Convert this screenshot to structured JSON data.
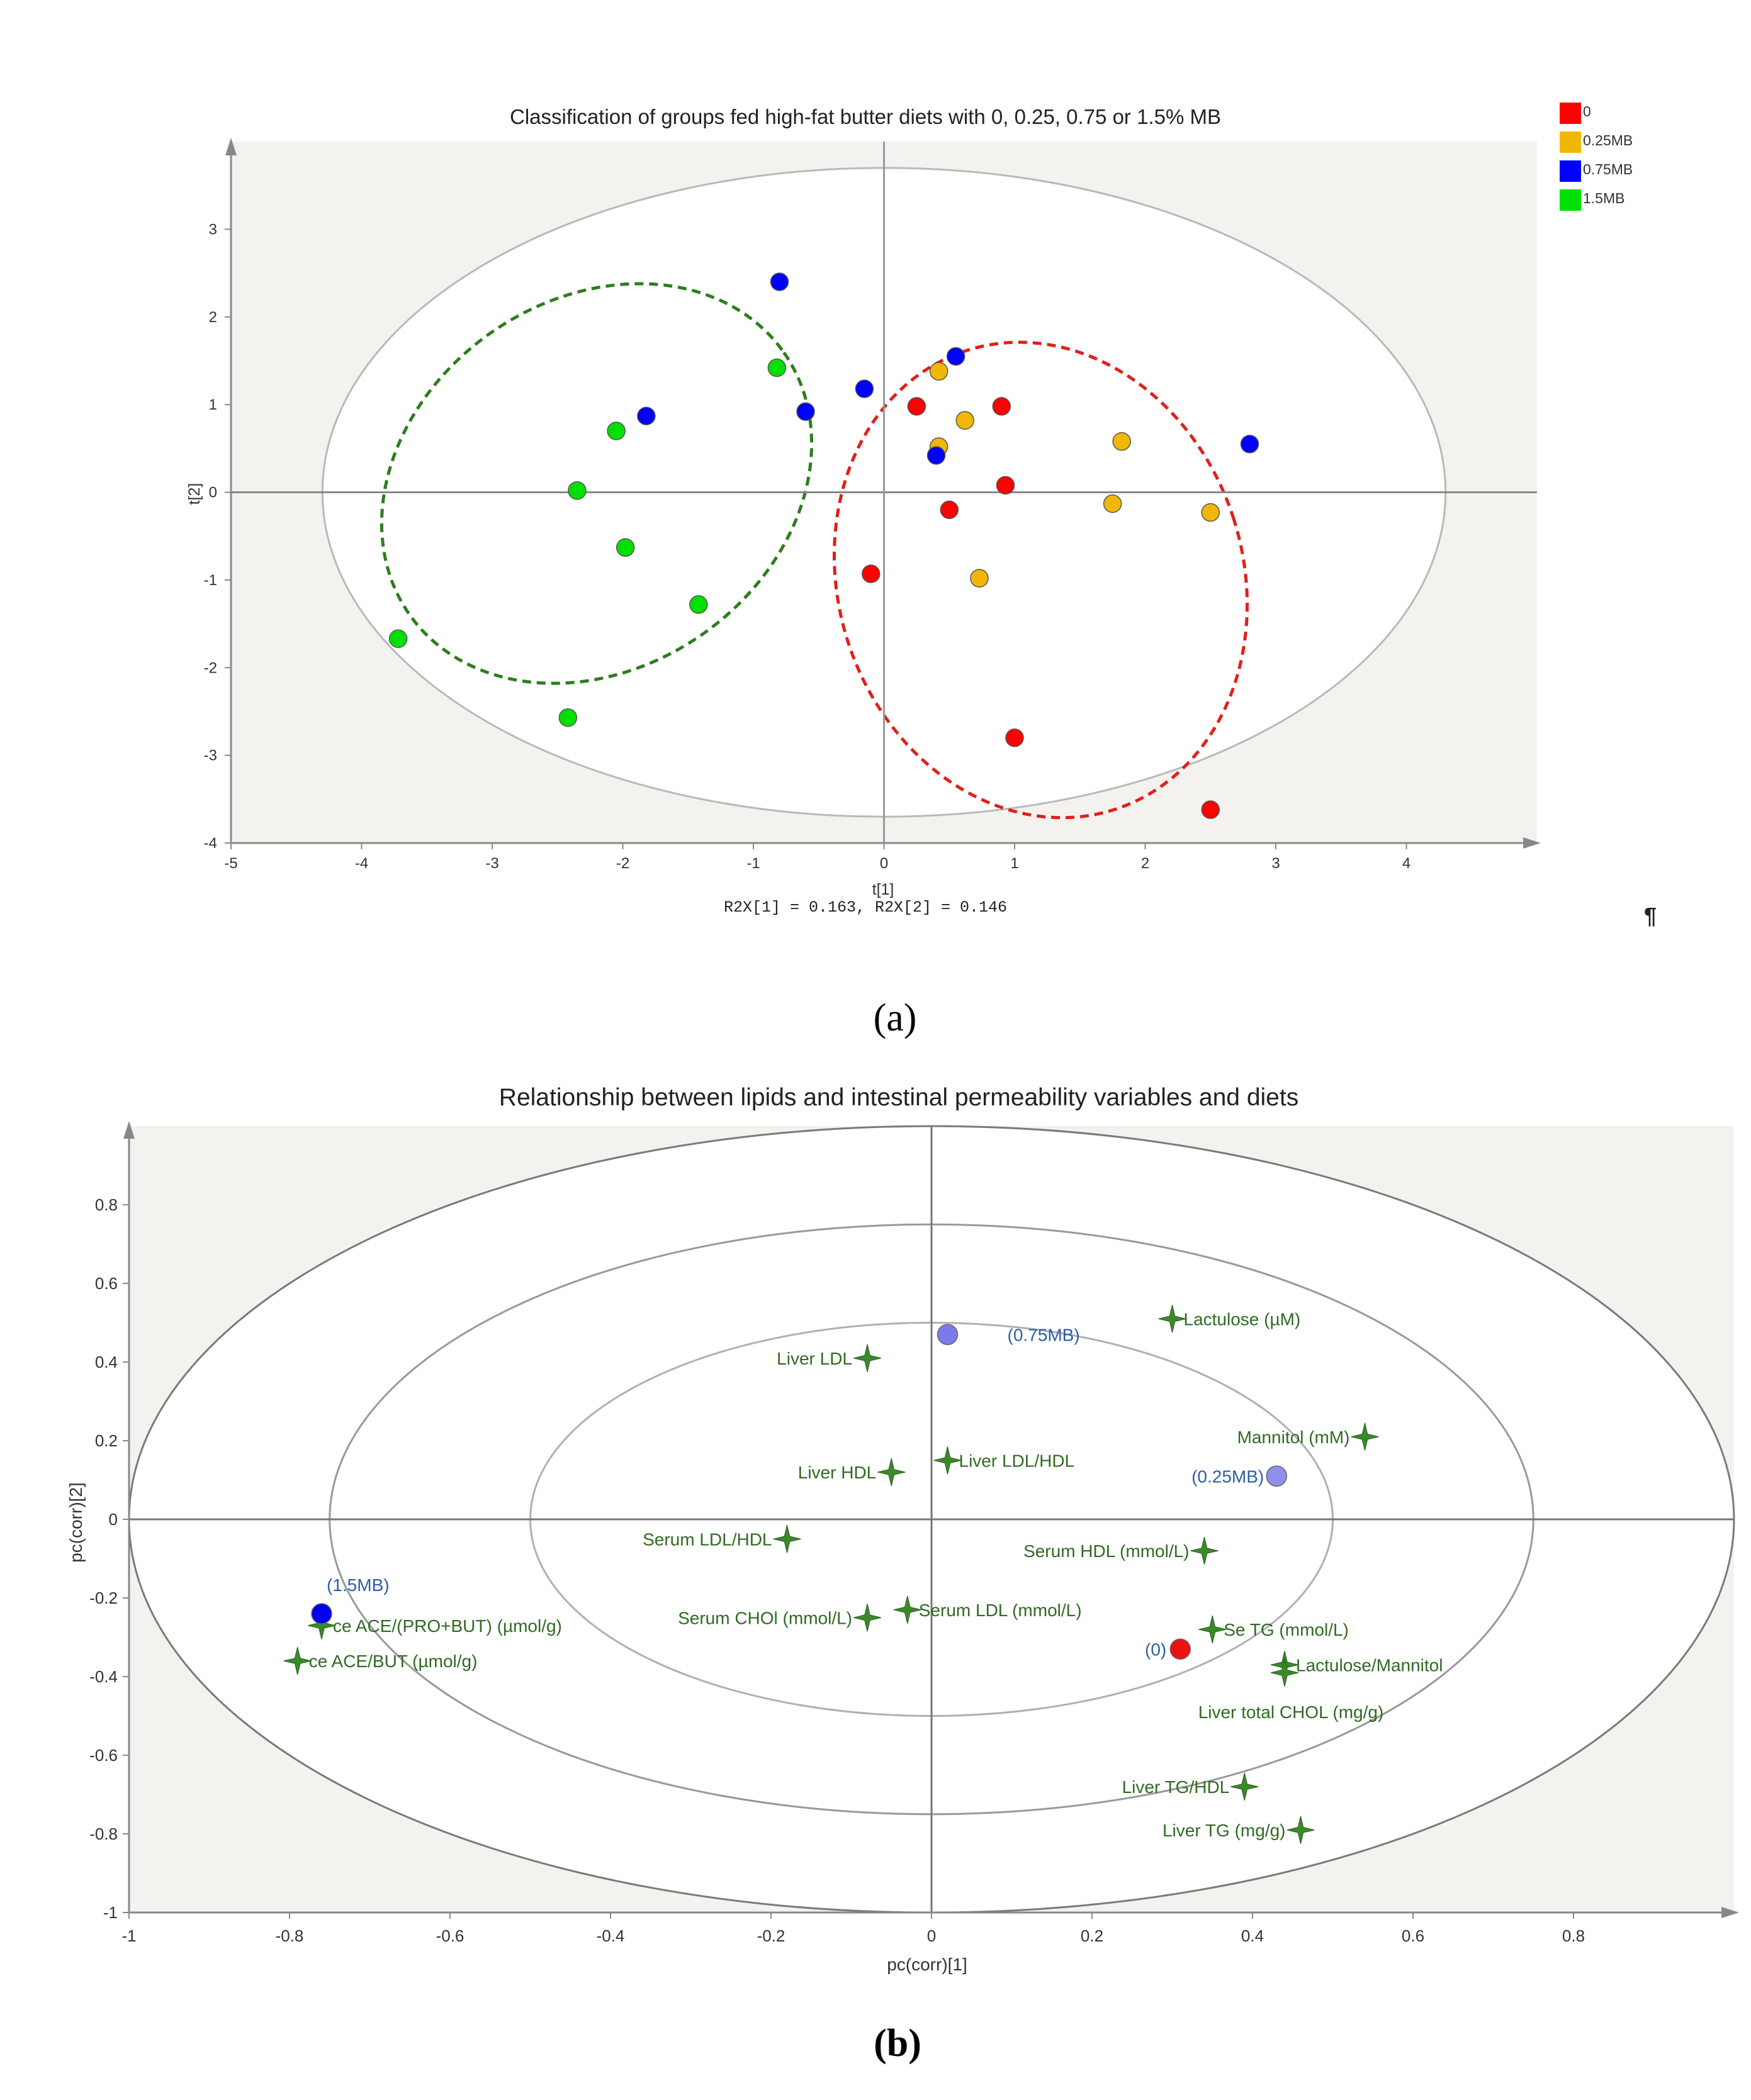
{
  "chart_data": [
    {
      "type": "scatter",
      "title": "Classification of groups fed high-fat butter diets with 0, 0.25, 0.75 or 1.5% MB",
      "xlabel": "t[1]",
      "ylabel": "t[2]",
      "footer": "R2X[1] = 0.163, R2X[2] = 0.146",
      "mark": "¶",
      "panel_label": "(a)",
      "xlim": [
        -5,
        5
      ],
      "ylim": [
        -4,
        4
      ],
      "xticks": [
        -5,
        -4,
        -3,
        -2,
        -1,
        0,
        1,
        2,
        3,
        4
      ],
      "yticks": [
        -4,
        -3,
        -2,
        -1,
        0,
        1,
        2,
        3
      ],
      "hotelling_ellipse": {
        "cx": 0,
        "cy": 0,
        "rx": 4.3,
        "ry": 3.7
      },
      "group_ellipses": [
        {
          "name": "1.5MB group",
          "color": "#2e7d1f",
          "cx": -2.2,
          "cy": 0.1,
          "rx": 1.75,
          "ry": 2.1,
          "rotate": -35
        },
        {
          "name": "0 group",
          "color": "#e0201b",
          "cx": 1.2,
          "cy": -1.0,
          "rx": 1.55,
          "ry": 2.75,
          "rotate": -18
        }
      ],
      "legend": [
        {
          "label": "0",
          "color": "#ff0000"
        },
        {
          "label": "0.25MB",
          "color": "#f2b705"
        },
        {
          "label": "0.75MB",
          "color": "#0000ff"
        },
        {
          "label": "1.5MB",
          "color": "#00e000"
        }
      ],
      "series": [
        {
          "name": "0",
          "color": "#ff0000",
          "points": [
            [
              0.25,
              0.98
            ],
            [
              0.9,
              0.98
            ],
            [
              0.93,
              0.08
            ],
            [
              0.5,
              -0.2
            ],
            [
              -0.1,
              -0.93
            ],
            [
              1.0,
              -2.8
            ],
            [
              2.5,
              -3.62
            ]
          ]
        },
        {
          "name": "0.25MB",
          "color": "#f2b705",
          "points": [
            [
              0.42,
              1.38
            ],
            [
              0.62,
              0.82
            ],
            [
              0.42,
              0.52
            ],
            [
              1.82,
              0.58
            ],
            [
              1.75,
              -0.13
            ],
            [
              2.5,
              -0.23
            ],
            [
              0.73,
              -0.98
            ]
          ]
        },
        {
          "name": "0.75MB",
          "color": "#0000ff",
          "points": [
            [
              -0.8,
              2.4
            ],
            [
              0.55,
              1.55
            ],
            [
              -0.15,
              1.18
            ],
            [
              -0.6,
              0.92
            ],
            [
              -1.82,
              0.87
            ],
            [
              0.4,
              0.42
            ],
            [
              2.8,
              0.55
            ]
          ]
        },
        {
          "name": "1.5MB",
          "color": "#00e000",
          "points": [
            [
              -0.82,
              1.42
            ],
            [
              -2.05,
              0.7
            ],
            [
              -2.35,
              0.02
            ],
            [
              -1.98,
              -0.63
            ],
            [
              -1.42,
              -1.28
            ],
            [
              -3.72,
              -1.67
            ],
            [
              -2.42,
              -2.57
            ]
          ]
        }
      ]
    },
    {
      "type": "scatter",
      "title": "Relationship between lipids and intestinal permeability variables and diets",
      "xlabel": "pc(corr)[1]",
      "ylabel": "pc(corr)[2]",
      "panel_label": "(b)",
      "xlim": [
        -1,
        1
      ],
      "ylim": [
        -1,
        1
      ],
      "xticks": [
        -1,
        -0.8,
        -0.6,
        -0.4,
        -0.2,
        0,
        0.2,
        0.4,
        0.6,
        0.8
      ],
      "yticks": [
        -1,
        -0.8,
        -0.6,
        -0.4,
        -0.2,
        0,
        0.2,
        0.4,
        0.6,
        0.8
      ],
      "rings": [
        0.5,
        0.75,
        1.0
      ],
      "groups": [
        {
          "label": "(0.75MB)",
          "x": 0.02,
          "y": 0.47,
          "color": "#7a7aee"
        },
        {
          "label": "(0.25MB)",
          "x": 0.43,
          "y": 0.11,
          "color": "#8f8fee"
        },
        {
          "label": "(0)",
          "x": 0.31,
          "y": -0.33,
          "color": "#ee1111"
        },
        {
          "label": "(1.5MB)",
          "x": -0.76,
          "y": -0.24,
          "color": "#0000ee"
        }
      ],
      "variables": [
        {
          "label": "Lactulose (µM)",
          "x": 0.3,
          "y": 0.51
        },
        {
          "label": "Liver LDL",
          "x": -0.08,
          "y": 0.41
        },
        {
          "label": "Mannitol (mM)",
          "x": 0.54,
          "y": 0.21
        },
        {
          "label": "Liver LDL/HDL",
          "x": 0.02,
          "y": 0.15
        },
        {
          "label": "Liver HDL",
          "x": -0.05,
          "y": 0.12
        },
        {
          "label": "Serum LDL/HDL",
          "x": -0.18,
          "y": -0.05
        },
        {
          "label": "Serum HDL (mmol/L)",
          "x": 0.34,
          "y": -0.08
        },
        {
          "label": "Serum CHOl (mmol/L)",
          "x": -0.08,
          "y": -0.25
        },
        {
          "label": "Serum LDL (mmol/L)",
          "x": -0.03,
          "y": -0.23
        },
        {
          "label": "Se TG (mmol/L)",
          "x": 0.35,
          "y": -0.28
        },
        {
          "label": "Lactulose/Mannitol",
          "x": 0.44,
          "y": -0.37
        },
        {
          "label": "Liver total CHOL (mg/g)",
          "x": 0.44,
          "y": -0.39
        },
        {
          "label": "ce ACE/(PRO+BUT) (µmol/g)",
          "x": -0.76,
          "y": -0.27
        },
        {
          "label": "ce ACE/BUT (µmol/g)",
          "x": -0.79,
          "y": -0.36
        },
        {
          "label": "Liver TG/HDL",
          "x": 0.39,
          "y": -0.68
        },
        {
          "label": "Liver TG (mg/g)",
          "x": 0.46,
          "y": -0.79
        }
      ]
    }
  ]
}
